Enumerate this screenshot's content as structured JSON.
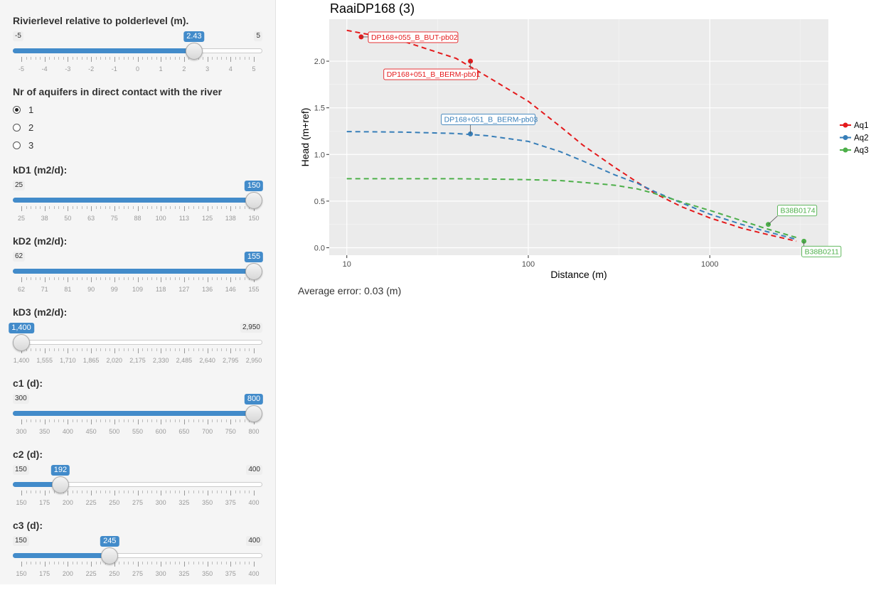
{
  "sidebar": {
    "river_slider": {
      "label": "Rivierlevel relative to polderlevel (m).",
      "min": -5,
      "max": 5,
      "value": 2.43,
      "min_label": "-5",
      "max_label": "5",
      "value_label": "2.43",
      "major_ticks": [
        "-5",
        "-4",
        "-3",
        "-2",
        "-1",
        "0",
        "1",
        "2",
        "3",
        "4",
        "5"
      ]
    },
    "aquifers": {
      "label": "Nr of aquifers in direct contact with the river",
      "options": [
        "1",
        "2",
        "3"
      ],
      "selected": "1"
    },
    "kd1": {
      "label": "kD1 (m2/d):",
      "min": 25,
      "max": 150,
      "value": 150,
      "min_label": "25",
      "max_label": "",
      "value_label": "150",
      "major_ticks": [
        "25",
        "38",
        "50",
        "63",
        "75",
        "88",
        "100",
        "113",
        "125",
        "138",
        "150"
      ]
    },
    "kd2": {
      "label": "kD2 (m2/d):",
      "min": 62,
      "max": 155,
      "value": 155,
      "min_label": "62",
      "max_label": "",
      "value_label": "155",
      "major_ticks": [
        "62",
        "71",
        "81",
        "90",
        "99",
        "109",
        "118",
        "127",
        "136",
        "146",
        "155"
      ]
    },
    "kd3": {
      "label": "kD3 (m2/d):",
      "min": 1400,
      "max": 2950,
      "value": 1400,
      "min_label": "",
      "max_label": "2,950",
      "value_label": "1,400",
      "major_ticks": [
        "1,400",
        "1,555",
        "1,710",
        "1,865",
        "2,020",
        "2,175",
        "2,330",
        "2,485",
        "2,640",
        "2,795",
        "2,950"
      ]
    },
    "c1": {
      "label": "c1 (d):",
      "min": 300,
      "max": 800,
      "value": 800,
      "min_label": "300",
      "max_label": "",
      "value_label": "800",
      "major_ticks": [
        "300",
        "350",
        "400",
        "450",
        "500",
        "550",
        "600",
        "650",
        "700",
        "750",
        "800"
      ]
    },
    "c2": {
      "label": "c2 (d):",
      "min": 150,
      "max": 400,
      "value": 192,
      "min_label": "150",
      "max_label": "400",
      "value_label": "192",
      "major_ticks": [
        "150",
        "175",
        "200",
        "225",
        "250",
        "275",
        "300",
        "325",
        "350",
        "375",
        "400"
      ]
    },
    "c3": {
      "label": "c3 (d):",
      "min": 150,
      "max": 400,
      "value": 245,
      "min_label": "150",
      "max_label": "400",
      "value_label": "245",
      "major_ticks": [
        "150",
        "175",
        "200",
        "225",
        "250",
        "275",
        "300",
        "325",
        "350",
        "375",
        "400"
      ]
    }
  },
  "main": {
    "avg_error": "Average error: 0.03 (m)"
  },
  "chart_data": {
    "type": "line",
    "title": "RaaiDP168 (3)",
    "xlabel": "Distance (m)",
    "ylabel": "Head (m+ref)",
    "x_scale": "log",
    "xlim": [
      8,
      4500
    ],
    "ylim": [
      -0.08,
      2.45
    ],
    "x_ticks": [
      10,
      100,
      1000
    ],
    "x_tick_labels": [
      "10",
      "100",
      "1000"
    ],
    "y_ticks": [
      0.0,
      0.5,
      1.0,
      1.5,
      2.0
    ],
    "y_tick_labels": [
      "0.0",
      "0.5",
      "1.0",
      "1.5",
      "2.0"
    ],
    "grid": true,
    "legend_position": "right",
    "series": [
      {
        "name": "Aq1",
        "color": "#e41a1c",
        "x": [
          10,
          20,
          40,
          60,
          100,
          150,
          200,
          300,
          400,
          500,
          700,
          1000,
          1500,
          2000,
          3000
        ],
        "y": [
          2.33,
          2.22,
          2.03,
          1.83,
          1.57,
          1.3,
          1.1,
          0.86,
          0.7,
          0.58,
          0.44,
          0.32,
          0.21,
          0.15,
          0.07
        ]
      },
      {
        "name": "Aq2",
        "color": "#377eb8",
        "x": [
          10,
          20,
          40,
          60,
          100,
          150,
          200,
          300,
          400,
          500,
          700,
          1000,
          1500,
          2000,
          3000
        ],
        "y": [
          1.245,
          1.24,
          1.225,
          1.2,
          1.14,
          1.03,
          0.93,
          0.78,
          0.69,
          0.6,
          0.48,
          0.36,
          0.25,
          0.18,
          0.09
        ]
      },
      {
        "name": "Aq3",
        "color": "#4daf4a",
        "x": [
          10,
          20,
          40,
          60,
          100,
          150,
          200,
          300,
          400,
          500,
          700,
          1000,
          1500,
          2000,
          3000
        ],
        "y": [
          0.74,
          0.74,
          0.74,
          0.737,
          0.73,
          0.72,
          0.7,
          0.67,
          0.63,
          0.58,
          0.49,
          0.4,
          0.29,
          0.21,
          0.11
        ]
      }
    ],
    "points": [
      {
        "name": "DP168+055_B_BUT-pb02",
        "aq": "Aq1",
        "x": 12,
        "y": 2.26,
        "color": "#e41a1c",
        "label_side": "right"
      },
      {
        "name": "DP168+051_B_BERM-pb01",
        "aq": "Aq1",
        "x": 48,
        "y": 2.0,
        "color": "#e41a1c",
        "label_side": "below-left"
      },
      {
        "name": "DP168+051_B_BERM-pb03",
        "aq": "Aq2",
        "x": 48,
        "y": 1.22,
        "color": "#377eb8",
        "label_side": "above"
      },
      {
        "name": "B38B0174",
        "aq": "Aq3",
        "x": 2100,
        "y": 0.25,
        "color": "#4daf4a",
        "label_side": "above-right"
      },
      {
        "name": "B38B0211",
        "aq": "Aq3",
        "x": 3300,
        "y": 0.07,
        "color": "#4daf4a",
        "label_side": "below-right"
      }
    ]
  }
}
